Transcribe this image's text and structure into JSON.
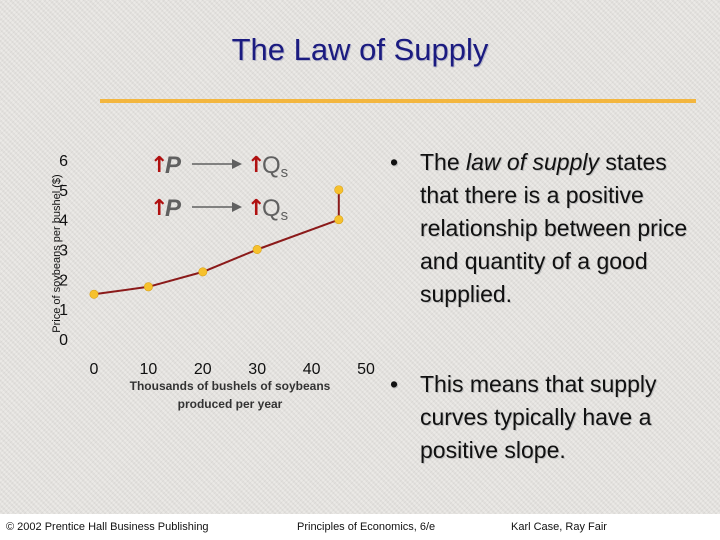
{
  "slide": {
    "title": "The Law of Supply"
  },
  "chart_data": {
    "type": "line",
    "xlabel_line1": "Thousands of bushels of soybeans",
    "xlabel_line2": "produced per year",
    "ylabel": "Price of soybeans per bushel ($)",
    "x_ticks": [
      0,
      10,
      20,
      30,
      40,
      50
    ],
    "y_ticks": [
      0,
      1,
      2,
      3,
      4,
      5,
      6
    ],
    "xlim": [
      0,
      50
    ],
    "ylim": [
      0,
      6
    ],
    "grid": false,
    "series": [
      {
        "points": [
          {
            "x": 0,
            "y": 1.5
          },
          {
            "x": 10,
            "y": 1.75
          },
          {
            "x": 20,
            "y": 2.25
          },
          {
            "x": 30,
            "y": 3.0
          },
          {
            "x": 45,
            "y": 4.0
          },
          {
            "x": 45,
            "y": 5.0
          }
        ]
      }
    ],
    "annotation": {
      "row1": {
        "arrow": "↑",
        "left": "P",
        "right": "Q",
        "right_sub": "s"
      },
      "row2": {
        "arrow": "↑",
        "left": "P",
        "right": "Q",
        "right_sub": "s"
      }
    },
    "colors": {
      "curve": "#8b1a1a",
      "points": "#f6c12d",
      "up_arrows": "#b01010",
      "annotation_text": "#606060"
    }
  },
  "bullets": [
    {
      "symbol": "•",
      "before": "The ",
      "emphasis": "law of supply",
      "after": " states that there is a positive relationship between price and quantity of a good supplied."
    },
    {
      "symbol": "•",
      "text": "This means that supply curves typically have a positive slope."
    }
  ],
  "footer": {
    "copyright": "© 2002 Prentice Hall Business Publishing",
    "book": "Principles of Economics, 6/e",
    "authors": "Karl Case, Ray Fair"
  }
}
